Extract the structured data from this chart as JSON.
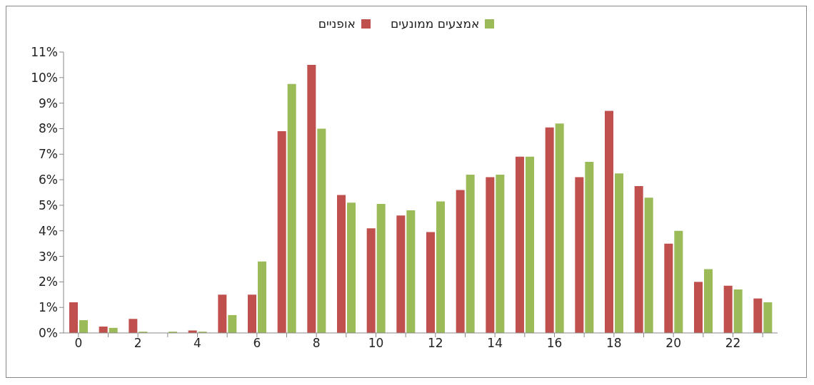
{
  "chart_data": {
    "type": "bar",
    "categories": [
      "0",
      null,
      "2",
      null,
      "4",
      null,
      "6",
      null,
      "8",
      null,
      "10",
      null,
      "12",
      null,
      "14",
      null,
      "16",
      null,
      "18",
      null,
      "20",
      null,
      "22",
      null
    ],
    "series": [
      {
        "name": "אופניים",
        "color": "#c0504d",
        "values": [
          1.2,
          0.25,
          0.55,
          0,
          0.1,
          1.5,
          1.5,
          7.9,
          10.5,
          5.4,
          4.1,
          4.6,
          3.95,
          5.6,
          6.1,
          6.9,
          8.05,
          6.1,
          8.7,
          5.75,
          3.5,
          2.0,
          1.85,
          1.35
        ]
      },
      {
        "name": "אמצעים ממונעים",
        "color": "#9bbb59",
        "values": [
          0.5,
          0.2,
          0.05,
          0.05,
          0.05,
          0.7,
          2.8,
          9.75,
          8.0,
          5.1,
          5.05,
          4.8,
          5.15,
          6.2,
          6.2,
          6.9,
          8.2,
          6.7,
          6.25,
          5.3,
          4.0,
          2.5,
          1.7,
          1.2
        ]
      }
    ],
    "ylim": [
      0,
      11
    ],
    "yticks": [
      {
        "value": 0,
        "label": "0%"
      },
      {
        "value": 1,
        "label": "1%"
      },
      {
        "value": 2,
        "label": "2%"
      },
      {
        "value": 3,
        "label": "3%"
      },
      {
        "value": 4,
        "label": "4%"
      },
      {
        "value": 5,
        "label": "5%"
      },
      {
        "value": 6,
        "label": "6%"
      },
      {
        "value": 7,
        "label": "7%"
      },
      {
        "value": 8,
        "label": "8%"
      },
      {
        "value": 9,
        "label": "9%"
      },
      {
        "value": 10,
        "label": "10%"
      },
      {
        "value": 11,
        "label": "11%"
      }
    ],
    "grid": false,
    "legend": "top"
  }
}
